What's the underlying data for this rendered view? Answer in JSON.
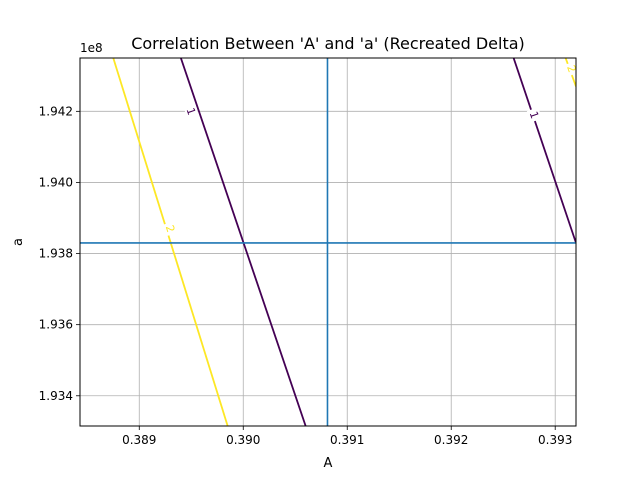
{
  "chart_data": {
    "type": "contour",
    "title": "Correlation Between 'A' and 'a' (Recreated Delta)",
    "xlabel": "A",
    "ylabel": "a",
    "xlim": [
      0.38843,
      0.3932
    ],
    "ylim": [
      193315000,
      194350000
    ],
    "x_ticks": [
      0.389,
      0.39,
      0.391,
      0.392,
      0.393
    ],
    "x_tick_labels": [
      "0.389",
      "0.390",
      "0.391",
      "0.392",
      "0.393"
    ],
    "y_ticks": [
      193400000,
      193600000,
      193800000,
      194000000,
      194200000
    ],
    "y_tick_labels": [
      "1.934",
      "1.936",
      "1.938",
      "1.940",
      "1.942"
    ],
    "y_offset_label": "1e8",
    "grid": true,
    "reference_lines": {
      "vertical_x": 0.39081,
      "horizontal_y": 193830000,
      "color": "#1f77b4"
    },
    "contours": [
      {
        "level_label": "1",
        "color": "#440154",
        "points": [
          [
            0.3894,
            194350000
          ],
          [
            0.3906,
            193315000
          ]
        ],
        "label_at": [
          0.3895,
          194200000
        ]
      },
      {
        "level_label": "2",
        "color": "#fde725",
        "points": [
          [
            0.38875,
            194350000
          ],
          [
            0.38985,
            193315000
          ]
        ],
        "label_at": [
          0.3893,
          193870000
        ]
      },
      {
        "level_label": "1",
        "color": "#440154",
        "points": [
          [
            0.3926,
            194350000
          ],
          [
            0.3932,
            193830000
          ]
        ],
        "label_at": [
          0.3928,
          194190000
        ]
      },
      {
        "level_label": "2",
        "color": "#fde725",
        "points": [
          [
            0.3931,
            194350000
          ],
          [
            0.3932,
            194270000
          ]
        ],
        "label_at": [
          0.39316,
          194320000
        ]
      }
    ]
  }
}
